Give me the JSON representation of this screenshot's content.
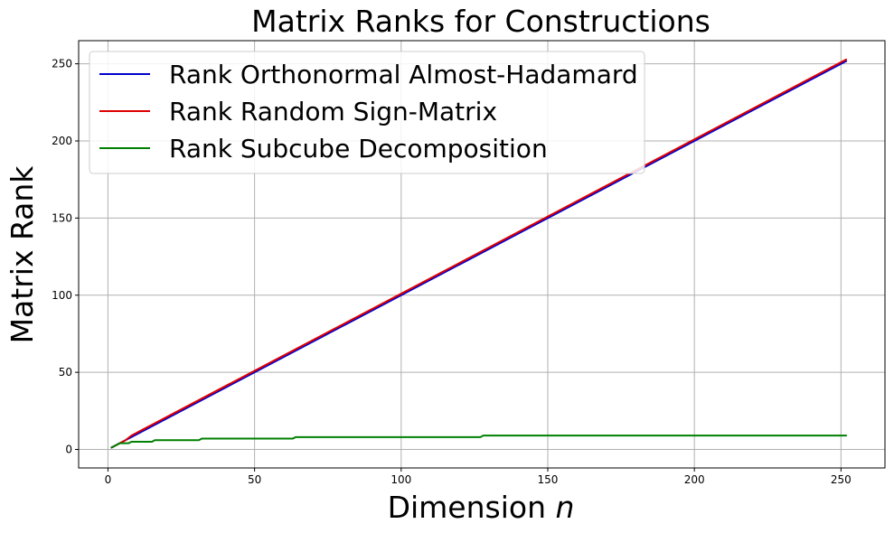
{
  "chart_data": {
    "type": "line",
    "title": "Matrix Ranks for Constructions",
    "xlabel_main": "Dimension ",
    "xlabel_var": "n",
    "ylabel": "Matrix Rank",
    "xlim": [
      -10,
      265
    ],
    "ylim": [
      -12,
      265
    ],
    "xticks": [
      0,
      50,
      100,
      150,
      200,
      250
    ],
    "yticks": [
      0,
      50,
      100,
      150,
      200,
      250
    ],
    "grid": true,
    "legend_position": "top-left",
    "series": [
      {
        "name": "Rank Orthonormal Almost-Hadamard",
        "color": "#0000cc",
        "points": [
          [
            1,
            1
          ],
          [
            252,
            252
          ]
        ]
      },
      {
        "name": "Rank Random Sign-Matrix",
        "color": "#dd0000",
        "points": [
          [
            1,
            1
          ],
          [
            2,
            2
          ],
          [
            4,
            4
          ],
          [
            6,
            6
          ],
          [
            8,
            9
          ],
          [
            10,
            11
          ],
          [
            12,
            13
          ],
          [
            14,
            15
          ],
          [
            252,
            253
          ]
        ]
      },
      {
        "name": "Rank Subcube Decomposition",
        "color": "#008000",
        "points": [
          [
            1,
            1
          ],
          [
            2,
            2
          ],
          [
            3,
            3
          ],
          [
            4,
            4
          ],
          [
            7,
            4
          ],
          [
            8,
            5
          ],
          [
            15,
            5
          ],
          [
            16,
            6
          ],
          [
            31,
            6
          ],
          [
            32,
            7
          ],
          [
            63,
            7
          ],
          [
            64,
            8
          ],
          [
            127,
            8
          ],
          [
            128,
            9
          ],
          [
            252,
            9
          ]
        ]
      }
    ]
  }
}
